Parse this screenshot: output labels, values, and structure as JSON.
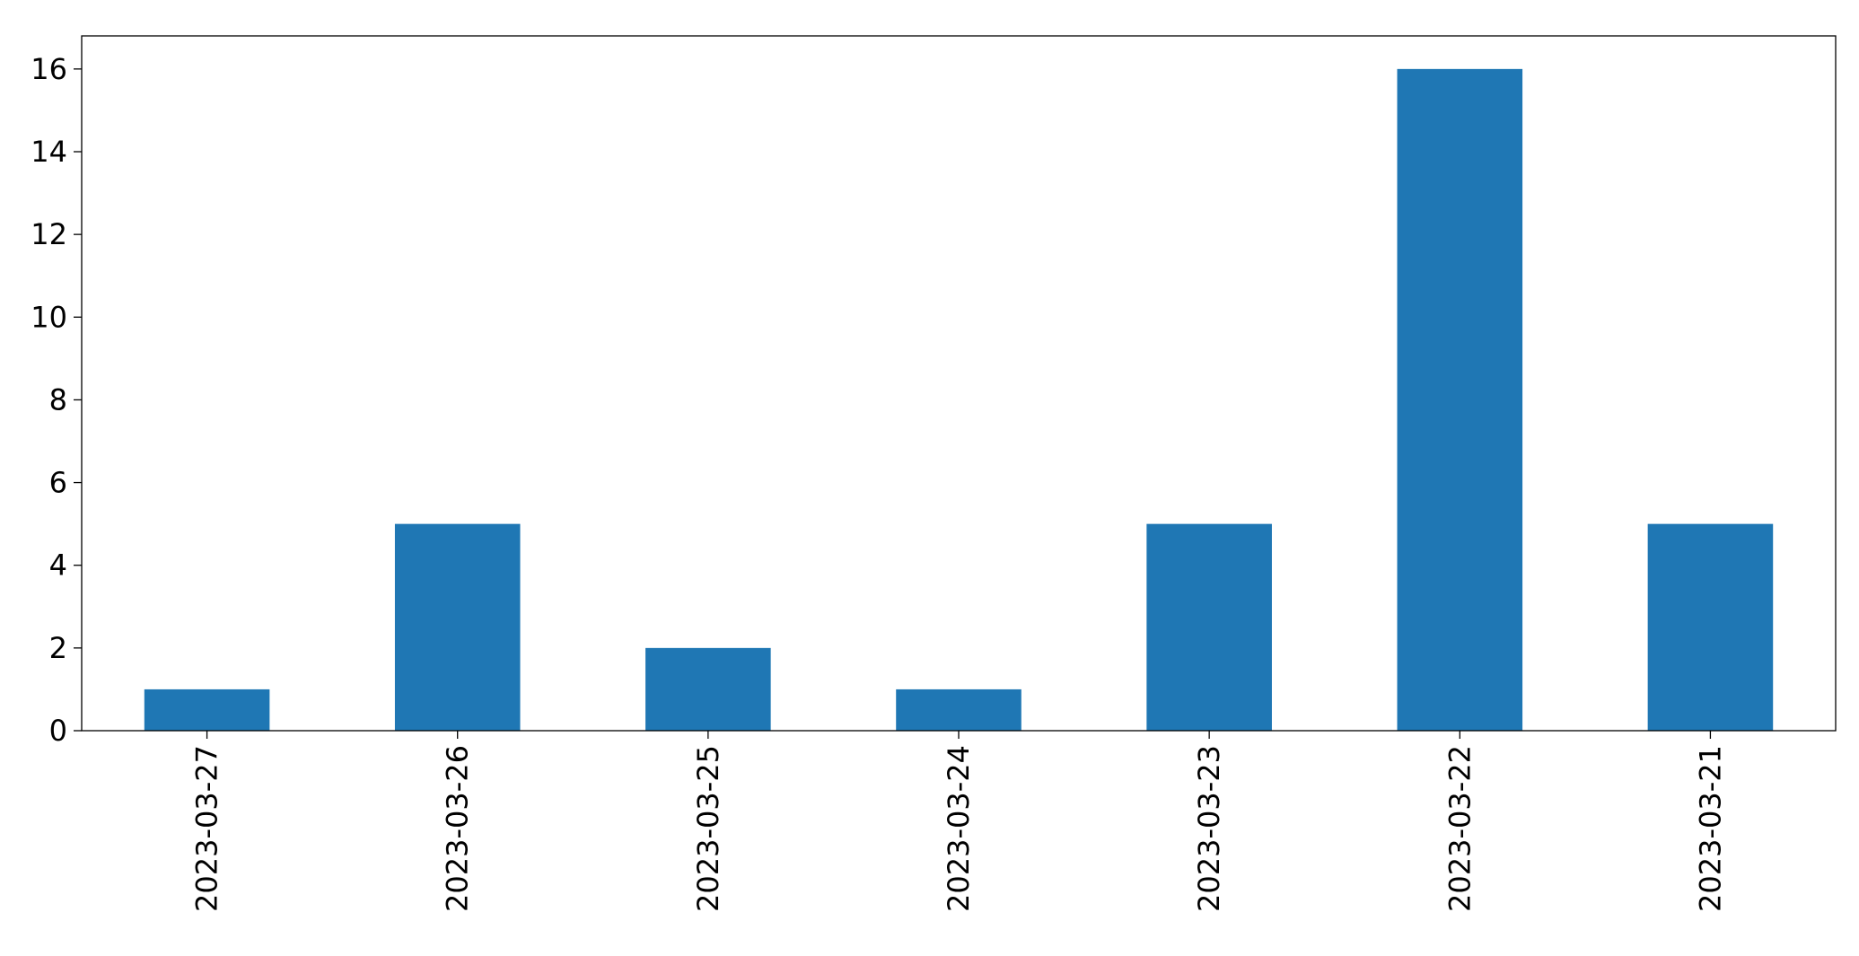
{
  "chart_data": {
    "type": "bar",
    "title": "",
    "xlabel": "",
    "ylabel": "",
    "categories": [
      "2023-03-27",
      "2023-03-26",
      "2023-03-25",
      "2023-03-24",
      "2023-03-23",
      "2023-03-22",
      "2023-03-21"
    ],
    "values": [
      1,
      5,
      2,
      1,
      5,
      16,
      5
    ],
    "ylim": [
      0,
      16.8
    ],
    "yticks": [
      0,
      2,
      4,
      6,
      8,
      10,
      12,
      14,
      16
    ],
    "grid": false,
    "legend": "none",
    "bar_color": "#1f77b4",
    "axis_color": "#000000"
  }
}
